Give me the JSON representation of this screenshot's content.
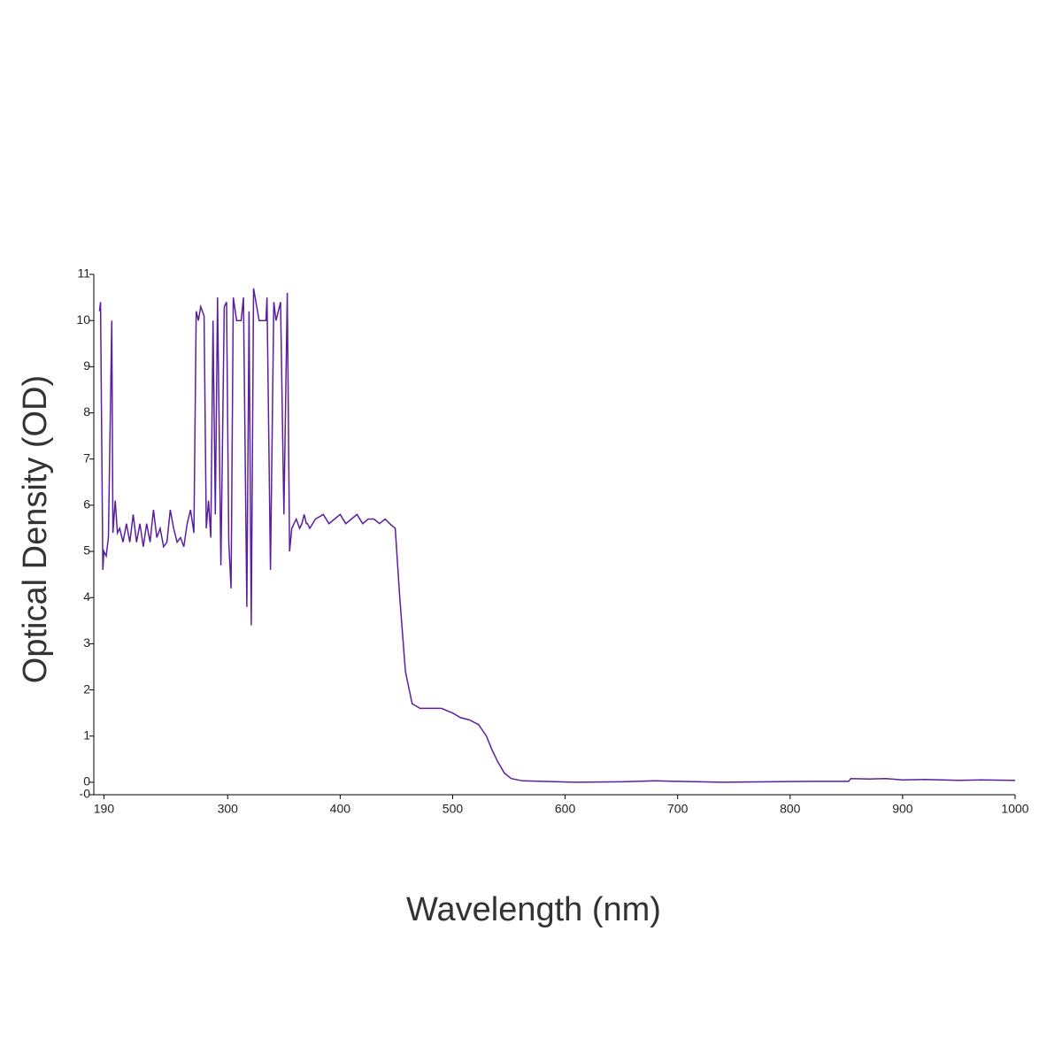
{
  "chart_data": {
    "type": "line",
    "xlabel": "Wavelength (nm)",
    "ylabel": "Optical Density (OD)",
    "color": "#5b1f9e",
    "x": [
      186,
      187,
      189,
      190,
      192,
      194,
      197,
      198,
      200,
      202,
      204,
      207,
      210,
      213,
      216,
      219,
      222,
      225,
      228,
      231,
      234,
      237,
      240,
      243,
      246,
      249,
      252,
      255,
      258,
      261,
      264,
      267,
      270,
      272,
      274,
      276,
      279,
      281,
      283,
      285,
      287,
      289,
      291,
      294,
      297,
      299,
      301,
      303,
      305,
      308,
      310,
      312,
      314,
      317,
      319,
      321,
      323,
      328,
      334,
      335,
      338,
      341,
      343,
      347,
      350,
      353,
      355,
      357,
      359,
      361,
      364,
      366,
      368,
      370,
      371,
      373,
      378,
      385,
      390,
      395,
      400,
      405,
      410,
      415,
      420,
      425,
      430,
      435,
      440,
      444,
      449,
      453,
      458,
      464,
      471,
      480,
      490,
      500,
      507,
      515,
      523,
      530,
      535,
      540,
      546,
      552,
      562,
      580,
      609,
      650,
      680,
      700,
      740,
      780,
      820,
      852,
      854,
      870,
      885,
      900,
      920,
      950,
      970,
      1000
    ],
    "values": [
      10.2,
      10.4,
      4.6,
      5.0,
      4.9,
      5.3,
      10.0,
      5.4,
      6.1,
      5.4,
      5.5,
      5.2,
      5.6,
      5.2,
      5.8,
      5.2,
      5.6,
      5.1,
      5.6,
      5.2,
      5.9,
      5.3,
      5.5,
      5.1,
      5.2,
      5.9,
      5.5,
      5.2,
      5.3,
      5.1,
      5.6,
      5.9,
      5.4,
      10.2,
      10.0,
      10.3,
      10.1,
      5.5,
      6.1,
      5.3,
      10.0,
      5.8,
      10.5,
      4.7,
      10.3,
      10.4,
      5.2,
      4.2,
      10.5,
      10.0,
      10.0,
      10.0,
      10.5,
      3.8,
      10.2,
      3.4,
      10.7,
      10.0,
      10.0,
      10.5,
      4.6,
      10.4,
      10.0,
      10.4,
      5.8,
      10.6,
      5.0,
      5.5,
      5.6,
      5.7,
      5.5,
      5.6,
      5.8,
      5.6,
      5.6,
      5.5,
      5.7,
      5.8,
      5.6,
      5.7,
      5.8,
      5.6,
      5.7,
      5.8,
      5.6,
      5.7,
      5.7,
      5.6,
      5.7,
      5.6,
      5.5,
      4.0,
      2.4,
      1.7,
      1.6,
      1.6,
      1.6,
      1.5,
      1.4,
      1.35,
      1.25,
      1.0,
      0.7,
      0.45,
      0.2,
      0.08,
      0.03,
      0.02,
      0.0,
      0.01,
      0.03,
      0.02,
      0.0,
      0.01,
      0.02,
      0.02,
      0.08,
      0.07,
      0.08,
      0.05,
      0.06,
      0.04,
      0.05,
      0.04
    ],
    "xlim": [
      181,
      1000
    ],
    "ylim": [
      -0.27,
      11
    ],
    "xticks": [
      190,
      300,
      400,
      500,
      600,
      700,
      800,
      900,
      1000
    ],
    "yticks": [
      {
        "value": -0.27,
        "label": "-0"
      },
      0,
      1,
      2,
      3,
      4,
      5,
      6,
      7,
      8,
      9,
      10,
      11
    ]
  }
}
